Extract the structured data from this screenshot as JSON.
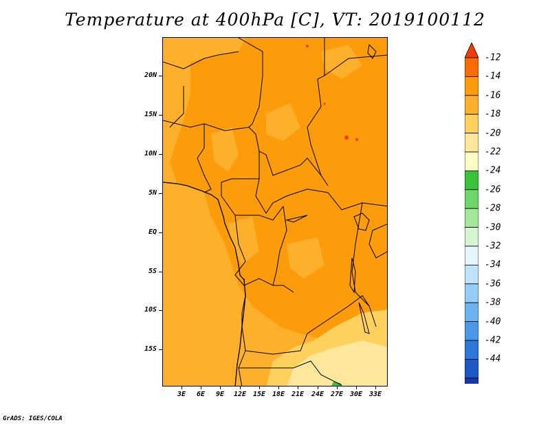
{
  "title": "Temperature at 400hPa [C], VT: 2019100112",
  "credit": "GrADS: IGES/COLA",
  "y_labels": [
    "20N",
    "15N",
    "10N",
    "5N",
    "EQ",
    "5S",
    "10S",
    "15S"
  ],
  "x_labels": [
    "3E",
    "6E",
    "9E",
    "12E",
    "15E",
    "18E",
    "21E",
    "24E",
    "27E",
    "30E",
    "33E"
  ],
  "colorbar": {
    "labels": [
      "-12",
      "-14",
      "-16",
      "-18",
      "-20",
      "-22",
      "-24",
      "-26",
      "-28",
      "-30",
      "-32",
      "-34",
      "-36",
      "-38",
      "-40",
      "-42",
      "-44"
    ],
    "colors": [
      "#f23c00",
      "#fb6b00",
      "#fc9c0a",
      "#fdb02c",
      "#fed15f",
      "#fee79a",
      "#fefbc4",
      "#39c23a",
      "#6ed76a",
      "#a5e89c",
      "#d4f5d0",
      "#e6f5ff",
      "#bfe3fb",
      "#95cdf7",
      "#6cb3f1",
      "#4a98e8",
      "#2b78da",
      "#1d58c6",
      "#1639a8",
      "#0d1e7d",
      "#e0e0f5"
    ]
  },
  "map": {
    "field_colors": {
      "dominant": "#fc9c0a",
      "west": "#fdb02c",
      "south_light": "#fed15f",
      "south_pale": "#fee79a",
      "green": "#39c23a",
      "hot": "#f23c00"
    }
  }
}
